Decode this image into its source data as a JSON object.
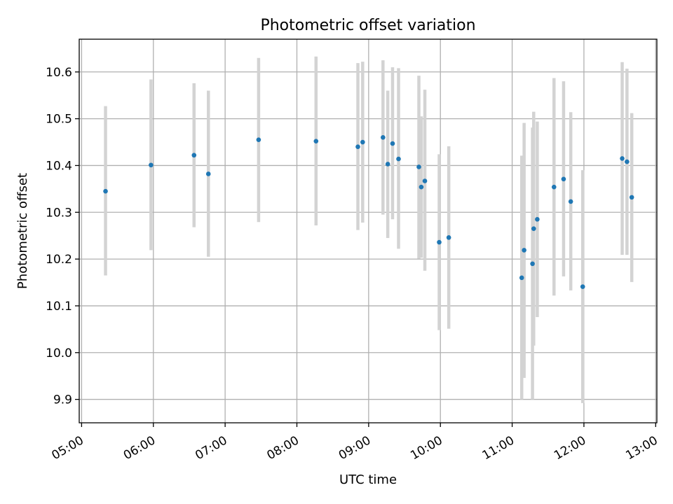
{
  "chart_data": {
    "type": "scatter",
    "title": "Photometric offset variation",
    "xlabel": "UTC time",
    "ylabel": "Photometric offset",
    "x_ticks": [
      "05:00",
      "06:00",
      "07:00",
      "08:00",
      "09:00",
      "10:00",
      "11:00",
      "12:00",
      "13:00"
    ],
    "y_ticks": [
      "9.9",
      "10.0",
      "10.1",
      "10.2",
      "10.3",
      "10.4",
      "10.5",
      "10.6"
    ],
    "xlim": [
      "04:58",
      "13:01"
    ],
    "ylim": [
      9.85,
      10.67
    ],
    "grid": true,
    "marker_color": "#1f77b4",
    "error_color": "#d3d3d3",
    "points": [
      {
        "x": "05:20",
        "y": 10.345,
        "yerr_low": 10.165,
        "yerr_high": 10.527
      },
      {
        "x": "05:58",
        "y": 10.401,
        "yerr_low": 10.219,
        "yerr_high": 10.584
      },
      {
        "x": "06:34",
        "y": 10.422,
        "yerr_low": 10.268,
        "yerr_high": 10.576
      },
      {
        "x": "06:46",
        "y": 10.382,
        "yerr_low": 10.205,
        "yerr_high": 10.56
      },
      {
        "x": "07:28",
        "y": 10.455,
        "yerr_low": 10.279,
        "yerr_high": 10.63
      },
      {
        "x": "08:16",
        "y": 10.452,
        "yerr_low": 10.272,
        "yerr_high": 10.633
      },
      {
        "x": "08:51",
        "y": 10.44,
        "yerr_low": 10.262,
        "yerr_high": 10.619
      },
      {
        "x": "08:55",
        "y": 10.45,
        "yerr_low": 10.278,
        "yerr_high": 10.622
      },
      {
        "x": "09:12",
        "y": 10.46,
        "yerr_low": 10.295,
        "yerr_high": 10.625
      },
      {
        "x": "09:16",
        "y": 10.403,
        "yerr_low": 10.245,
        "yerr_high": 10.56
      },
      {
        "x": "09:20",
        "y": 10.447,
        "yerr_low": 10.285,
        "yerr_high": 10.61
      },
      {
        "x": "09:25",
        "y": 10.414,
        "yerr_low": 10.222,
        "yerr_high": 10.608
      },
      {
        "x": "09:42",
        "y": 10.397,
        "yerr_low": 10.201,
        "yerr_high": 10.592
      },
      {
        "x": "09:44",
        "y": 10.354,
        "yerr_low": 10.203,
        "yerr_high": 10.505
      },
      {
        "x": "09:47",
        "y": 10.367,
        "yerr_low": 10.175,
        "yerr_high": 10.562
      },
      {
        "x": "09:59",
        "y": 10.236,
        "yerr_low": 10.048,
        "yerr_high": 10.424
      },
      {
        "x": "10:07",
        "y": 10.246,
        "yerr_low": 10.051,
        "yerr_high": 10.441
      },
      {
        "x": "11:08",
        "y": 10.16,
        "yerr_low": 9.9,
        "yerr_high": 10.421
      },
      {
        "x": "11:10",
        "y": 10.219,
        "yerr_low": 9.946,
        "yerr_high": 10.491
      },
      {
        "x": "11:17",
        "y": 10.19,
        "yerr_low": 9.9,
        "yerr_high": 10.481
      },
      {
        "x": "11:18",
        "y": 10.265,
        "yerr_low": 10.015,
        "yerr_high": 10.515
      },
      {
        "x": "11:21",
        "y": 10.285,
        "yerr_low": 10.076,
        "yerr_high": 10.494
      },
      {
        "x": "11:35",
        "y": 10.354,
        "yerr_low": 10.122,
        "yerr_high": 10.587
      },
      {
        "x": "11:43",
        "y": 10.371,
        "yerr_low": 10.163,
        "yerr_high": 10.58
      },
      {
        "x": "11:49",
        "y": 10.323,
        "yerr_low": 10.133,
        "yerr_high": 10.514
      },
      {
        "x": "11:59",
        "y": 10.141,
        "yerr_low": 9.892,
        "yerr_high": 10.39
      },
      {
        "x": "12:32",
        "y": 10.415,
        "yerr_low": 10.209,
        "yerr_high": 10.621
      },
      {
        "x": "12:36",
        "y": 10.408,
        "yerr_low": 10.209,
        "yerr_high": 10.607
      },
      {
        "x": "12:40",
        "y": 10.332,
        "yerr_low": 10.151,
        "yerr_high": 10.512
      }
    ]
  }
}
